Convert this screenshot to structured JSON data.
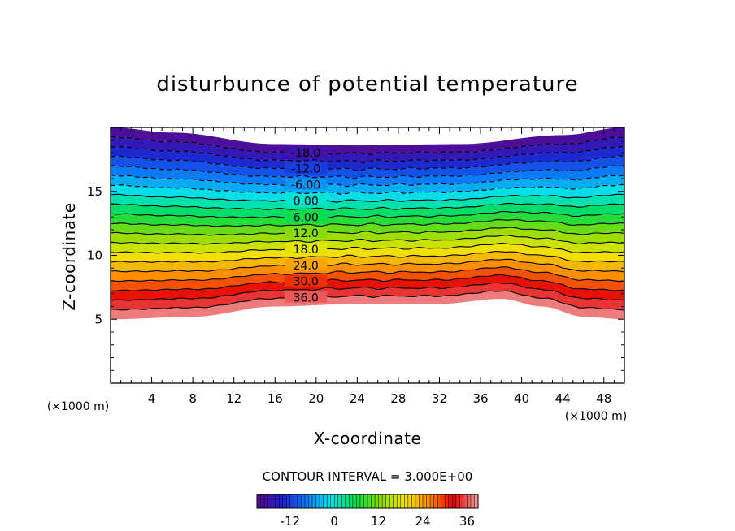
{
  "chart_data": {
    "type": "contour",
    "title": "disturbunce of potential temperature",
    "xlabel": "X-coordinate",
    "ylabel": "Z-coordinate",
    "x_unit_left": "(×1000 m)",
    "x_unit_right": "(×1000 m)",
    "xlim": [
      0,
      50
    ],
    "ylim": [
      0,
      20
    ],
    "x_ticks": [
      "4",
      "8",
      "12",
      "16",
      "20",
      "24",
      "28",
      "32",
      "36",
      "40",
      "44",
      "48"
    ],
    "y_ticks": [
      "5",
      "10",
      "15"
    ],
    "contour_interval_text": "CONTOUR INTERVAL = 3.000E+00",
    "contour_interval": 3.0,
    "value_range": [
      -21,
      39
    ],
    "contour_labels": [
      "-18.0",
      "-12.0",
      "-6.00",
      "0.00",
      "6.00",
      "12.0",
      "18.0",
      "24.0",
      "30.0",
      "36.0"
    ],
    "field_bottom_profile_z": {
      "x": [
        0,
        8,
        16,
        24,
        32,
        38,
        42,
        46,
        50
      ],
      "z": [
        5.0,
        5.2,
        6.0,
        6.2,
        6.2,
        6.6,
        6.0,
        5.2,
        5.0
      ]
    },
    "field_top_profile_z": {
      "x": [
        0,
        6,
        16,
        24,
        34,
        44,
        50
      ],
      "z": [
        20.0,
        19.6,
        18.7,
        18.6,
        18.7,
        19.4,
        20.0
      ]
    },
    "colorbar": {
      "tick_labels": [
        "-12",
        "0",
        "12",
        "24",
        "36"
      ],
      "colors": [
        "#5a0a8c",
        "#1e1ec8",
        "#0a78ff",
        "#00e6e6",
        "#00dc50",
        "#8cdc00",
        "#f0e600",
        "#ff8c00",
        "#e60000",
        "#f0a0a0"
      ]
    }
  }
}
